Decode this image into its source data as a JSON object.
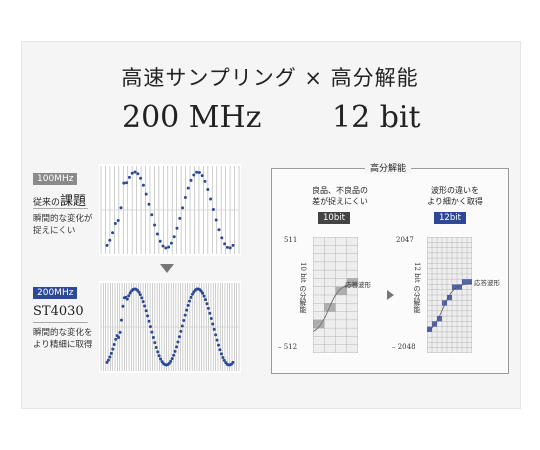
{
  "headline": "高速サンプリング × 高分解能",
  "spec_left": "200 MHz",
  "spec_right": "12 bit",
  "top_block": {
    "tag": "100MHz",
    "title_small": "従来の",
    "title_big": "課題",
    "desc": [
      "瞬間的な変化が",
      "捉えにくい"
    ]
  },
  "bottom_block": {
    "tag": "200MHz",
    "title": "ST4030",
    "desc": [
      "瞬間的な変化を",
      "より精細に取得"
    ]
  },
  "resolution": {
    "title": "高分解能",
    "left": {
      "caption": [
        "良品、不良品の",
        "差が捉えにくい"
      ],
      "tag": "10bit",
      "axis_top": "511",
      "axis_bottom": "– 512",
      "vertical": "10 bit の分解能",
      "wave_label": "応答波形"
    },
    "right": {
      "caption": [
        "波形の違いを",
        "より細かく取得"
      ],
      "tag": "12bit",
      "axis_top": "2047",
      "axis_bottom": "– 2048",
      "vertical": "12 bit の分解能",
      "wave_label": "応答波形"
    }
  },
  "colors": {
    "accent_blue": "#2d4996",
    "gray_tag": "#8a8a8a",
    "dot": "#2d4996"
  }
}
